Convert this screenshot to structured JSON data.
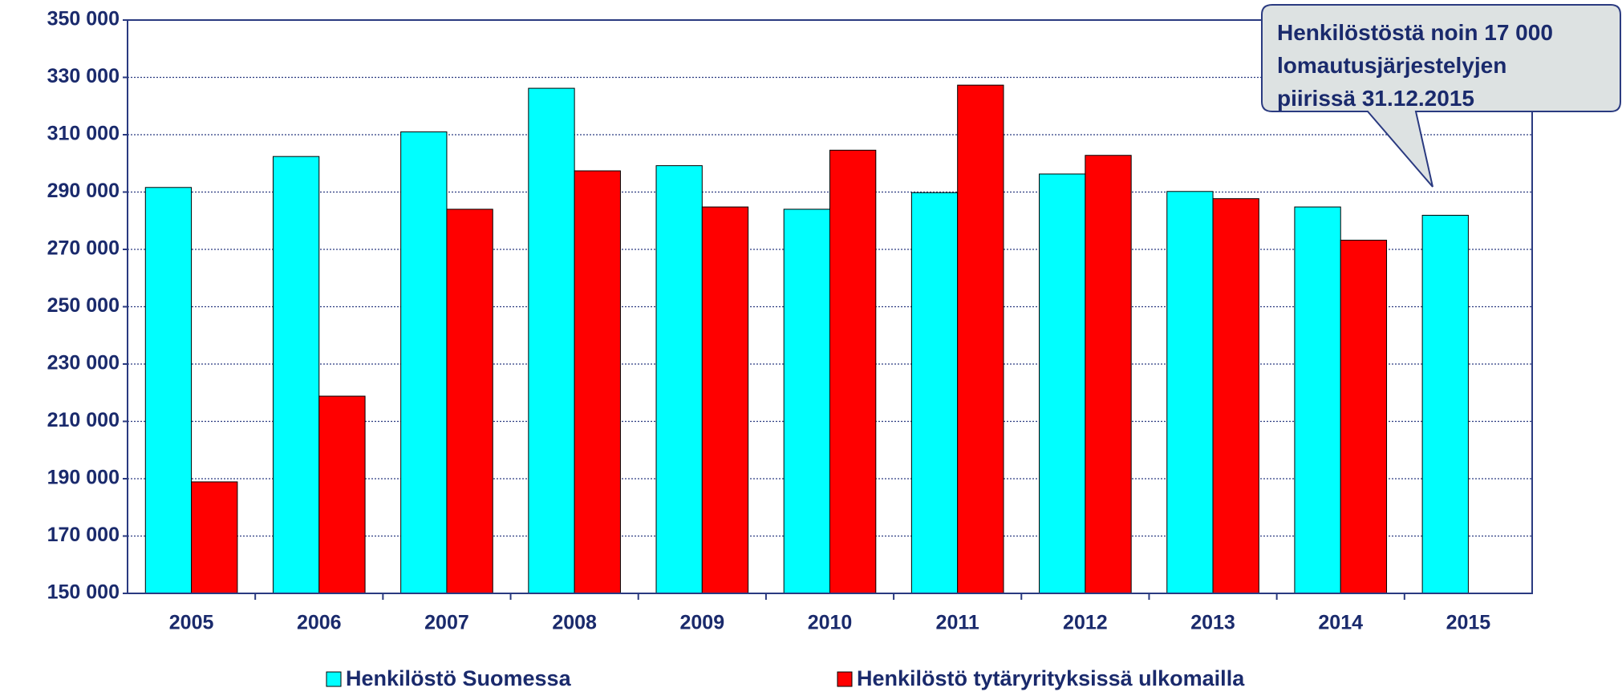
{
  "chart_data": {
    "type": "bar",
    "categories": [
      "2005",
      "2006",
      "2007",
      "2008",
      "2009",
      "2010",
      "2011",
      "2012",
      "2013",
      "2014",
      "2015"
    ],
    "series": [
      {
        "name": "Henkilöstö Suomessa",
        "color": "#00ffff",
        "values": [
          291600,
          302400,
          311000,
          326200,
          299200,
          284000,
          289800,
          296300,
          290200,
          284800,
          281900
        ]
      },
      {
        "name": "Henkilöstö tytäryrityksissä ulkomailla",
        "color": "#ff0000",
        "values": [
          188900,
          218800,
          284000,
          297400,
          284800,
          304600,
          327300,
          302800,
          287700,
          273200,
          null
        ]
      }
    ],
    "ylim": [
      150000,
      350000
    ],
    "yticks": [
      {
        "value": 150000,
        "label": "150 000"
      },
      {
        "value": 170000,
        "label": "170 000"
      },
      {
        "value": 190000,
        "label": "190 000"
      },
      {
        "value": 210000,
        "label": "210 000"
      },
      {
        "value": 230000,
        "label": "230 000"
      },
      {
        "value": 250000,
        "label": "250 000"
      },
      {
        "value": 270000,
        "label": "270 000"
      },
      {
        "value": 290000,
        "label": "290 000"
      },
      {
        "value": 310000,
        "label": "310 000"
      },
      {
        "value": 330000,
        "label": "330 000"
      },
      {
        "value": 350000,
        "label": "350 000"
      }
    ],
    "grid": true,
    "legend": "bottom",
    "annotation": [
      "Henkilöstöstä noin 17 000",
      "lomautusjärjestelyjen",
      "piirissä  31.12.2015"
    ]
  }
}
